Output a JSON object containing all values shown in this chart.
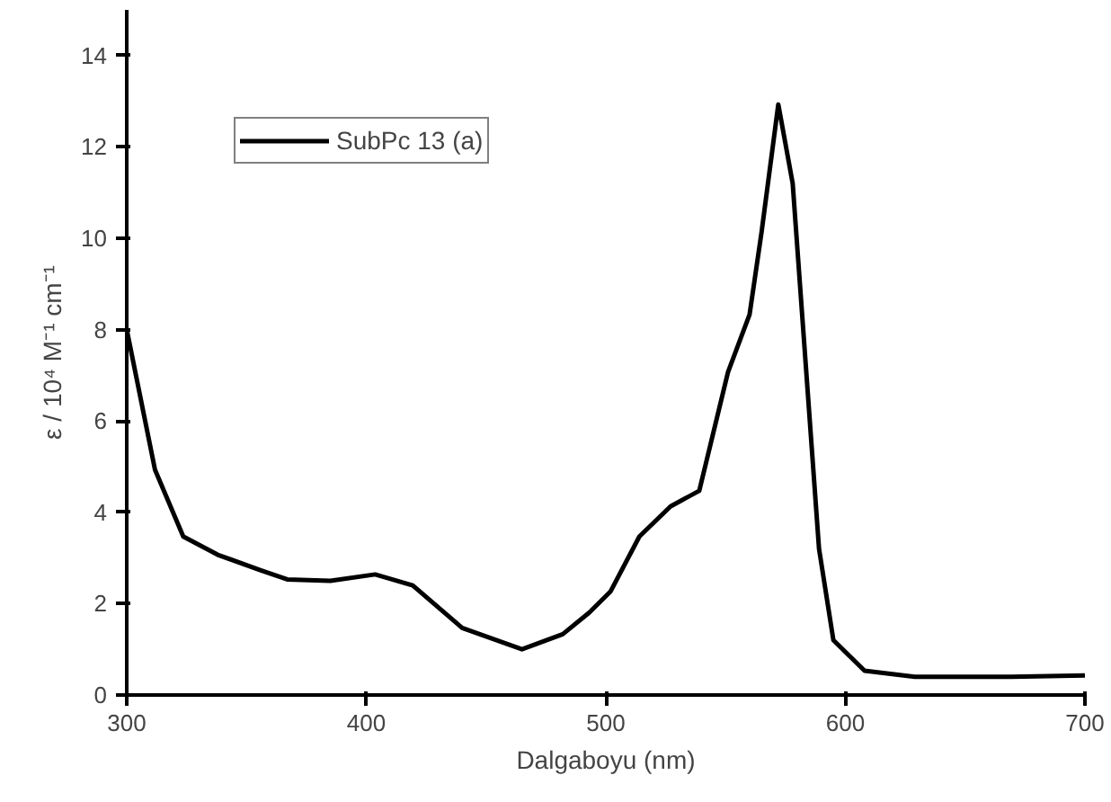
{
  "chart_data": {
    "type": "line",
    "xlabel": "Dalgaboyu (nm)",
    "ylabel": "ε / 10⁴ M⁻¹ cm⁻¹",
    "x": [
      300,
      311.8,
      323.6,
      338,
      356,
      367,
      385,
      403.7,
      419.4,
      440,
      465,
      482,
      493,
      502,
      514,
      527,
      539,
      551,
      560,
      565,
      572,
      578,
      583.5,
      589,
      595,
      608,
      629,
      669,
      700
    ],
    "series": [
      {
        "name": "SubPc 13 (a)",
        "color": "#000000",
        "values": [
          8.0,
          4.93,
          3.47,
          3.07,
          2.73,
          2.53,
          2.5,
          2.64,
          2.4,
          1.47,
          1.0,
          1.33,
          1.8,
          2.27,
          3.47,
          4.13,
          4.47,
          7.07,
          8.33,
          10.13,
          12.93,
          11.2,
          7.2,
          3.2,
          1.2,
          0.53,
          0.4,
          0.4,
          0.43
        ]
      }
    ],
    "xlim": [
      300,
      700
    ],
    "ylim": [
      0,
      15
    ],
    "xticks": [
      300,
      400,
      500,
      600,
      700
    ],
    "yticks": [
      0,
      2,
      4,
      6,
      8,
      10,
      12,
      14
    ],
    "grid": false,
    "legend": "top left",
    "marker": "none",
    "line_style": "solid"
  }
}
